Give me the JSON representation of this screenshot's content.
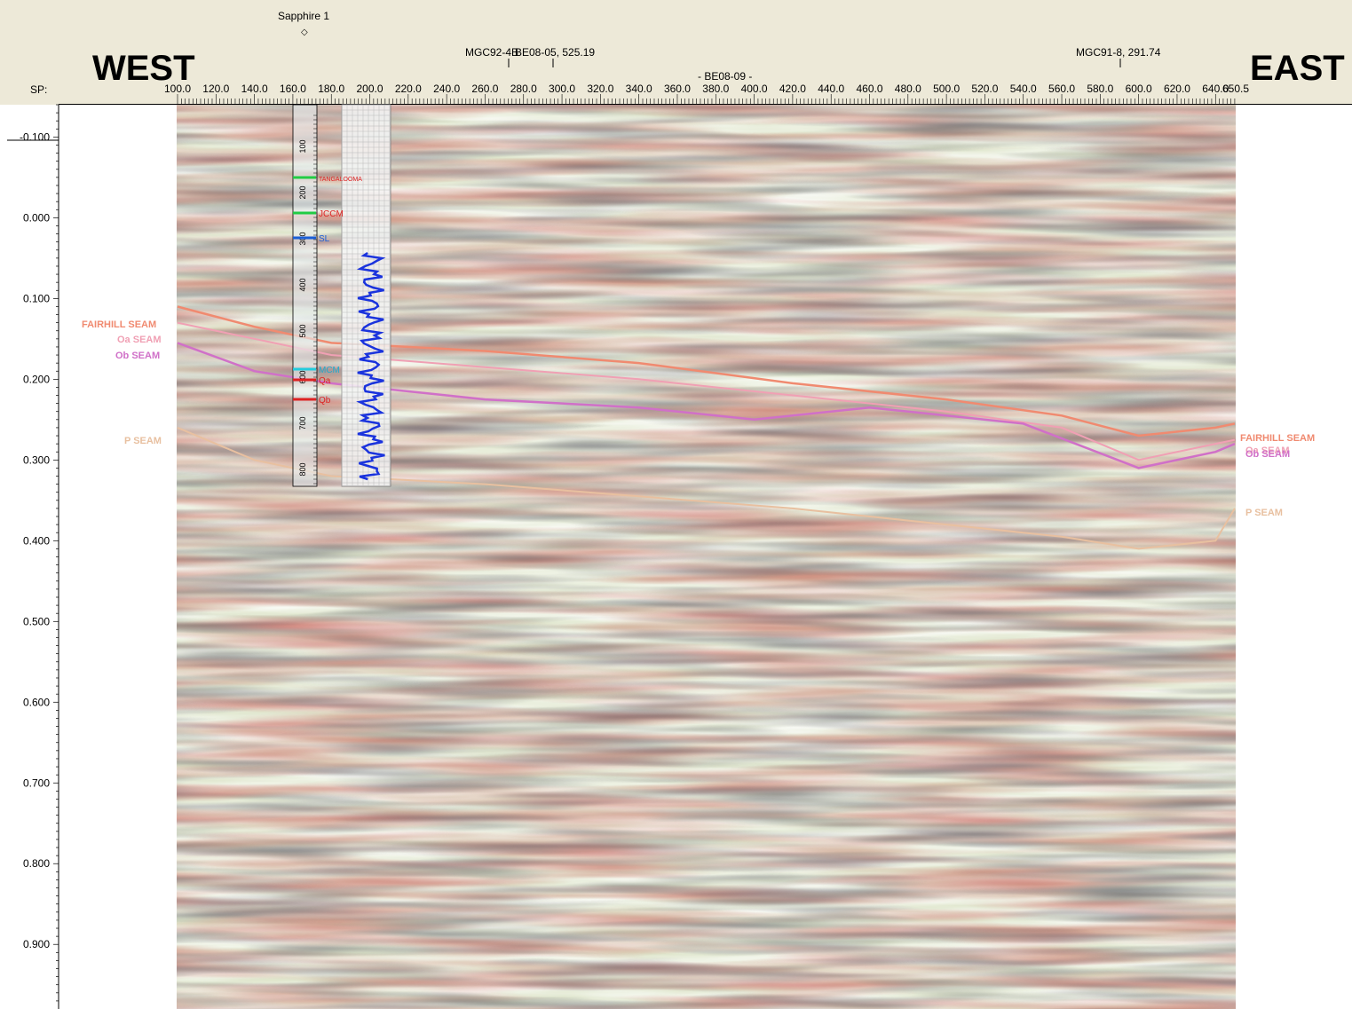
{
  "wells": {
    "sapphire": "Sapphire 1",
    "mgc92": "MGC92-4B",
    "mgc92_overlap": "BE08-05, 525.19",
    "line": "- BE08-09 -",
    "mgc91": "MGC91-8, 291.74"
  },
  "direction": {
    "west": "WEST",
    "east": "EAST"
  },
  "sp_label": "SP:",
  "sp_ticks": [
    "100.0",
    "120.0",
    "140.0",
    "160.0",
    "180.0",
    "200.0",
    "220.0",
    "240.0",
    "260.0",
    "280.0",
    "300.0",
    "320.0",
    "340.0",
    "360.0",
    "380.0",
    "400.0",
    "420.0",
    "440.0",
    "460.0",
    "480.0",
    "500.0",
    "520.0",
    "540.0",
    "560.0",
    "580.0",
    "600.0",
    "620.0",
    "640.0",
    "650.5"
  ],
  "sp_range": [
    100.0,
    650.5
  ],
  "time_ticks": [
    "-0.100",
    "0.000",
    "0.100",
    "0.200",
    "0.300",
    "0.400",
    "0.500",
    "0.600",
    "0.700",
    "0.800",
    "0.900"
  ],
  "time_range": [
    -0.14,
    0.98
  ],
  "well_log": {
    "depth_ticks": [
      "100",
      "200",
      "300",
      "400",
      "500",
      "600",
      "700",
      "800"
    ],
    "markers": [
      "TANGALOOMA",
      "JCCM",
      "SL",
      "MCM",
      "Qa",
      "Qb"
    ],
    "marker_colors": [
      "#22cc44",
      "#22cc44",
      "#1a5fd6",
      "#22ccdd",
      "#dd2222",
      "#dd2222"
    ],
    "marker_text_colors": [
      "#dd2222",
      "#dd2222",
      "#1a5fd6",
      "#22aacc",
      "#dd2222",
      "#dd2222"
    ]
  },
  "seams_left": [
    "FAIRHILL SEAM",
    "Oa SEAM",
    "Ob SEAM",
    "P SEAM"
  ],
  "seams_right": [
    "FAIRHILL SEAM",
    "Oa SEAM",
    "Ob SEAM",
    "P SEAM"
  ],
  "seam_colors": {
    "fairhill": "#f08a70",
    "oa": "#f0a0b4",
    "ob": "#d070c8",
    "p": "#e8c0a0"
  }
}
